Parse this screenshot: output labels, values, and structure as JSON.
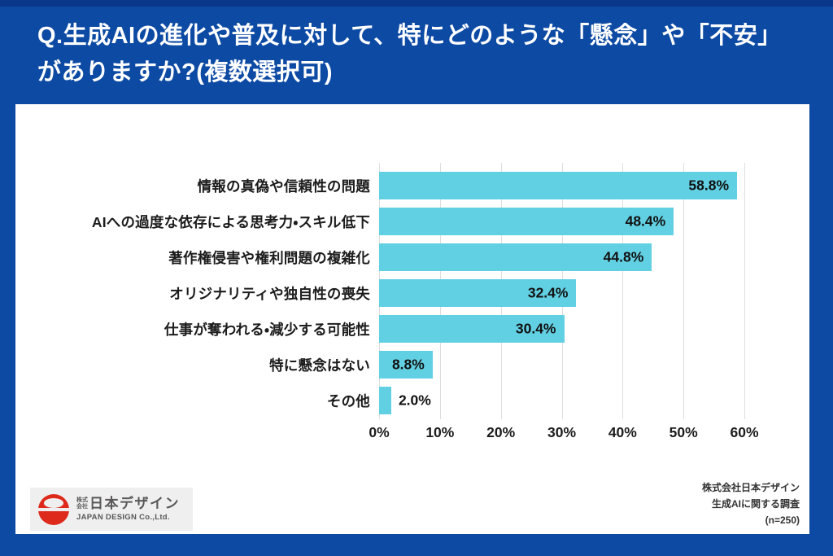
{
  "header": {
    "question_line1": "Q.生成AIの進化や普及に対して、特にどのような「懸念」や「不安」",
    "question_line2": "がありますか?(複数選択可)"
  },
  "chart_data": {
    "type": "bar",
    "orientation": "horizontal",
    "title": "",
    "categories": [
      "情報の真偽や信頼性の問題",
      "AIへの過度な依存による思考力・スキル低下",
      "著作権侵害や権利問題の複雑化",
      "オリジナリティや独自性の喪失",
      "仕事が奪われる・減少する可能性",
      "特に懸念はない",
      "その他"
    ],
    "values": [
      58.8,
      48.4,
      44.8,
      32.4,
      30.4,
      8.8,
      2.0
    ],
    "value_labels": [
      "58.8%",
      "48.4%",
      "44.8%",
      "32.4%",
      "30.4%",
      "8.8%",
      "2.0%"
    ],
    "x_ticks": [
      0,
      10,
      20,
      30,
      40,
      50,
      60
    ],
    "x_tick_labels": [
      "0%",
      "10%",
      "20%",
      "30%",
      "40%",
      "50%",
      "60%"
    ],
    "xlim": [
      0,
      62
    ],
    "grid": true,
    "legend": false
  },
  "footer": {
    "logo": {
      "prefix_top": "株式",
      "prefix_bottom": "会社",
      "name_jp": "日本デザイン",
      "name_en": "JAPAN DESIGN Co.,Ltd."
    },
    "source_line1": "株式会社日本デザイン",
    "source_line2": "生成AIに関する調査",
    "source_line3": "(n=250)"
  },
  "colors": {
    "background_blue": "#0c4aa4",
    "top_strip_blue": "#09388a",
    "bar_cyan": "#62d0e3",
    "gridline_gray": "#dedede",
    "logo_red": "#dd2a1b",
    "title_white": "#ffffff"
  }
}
